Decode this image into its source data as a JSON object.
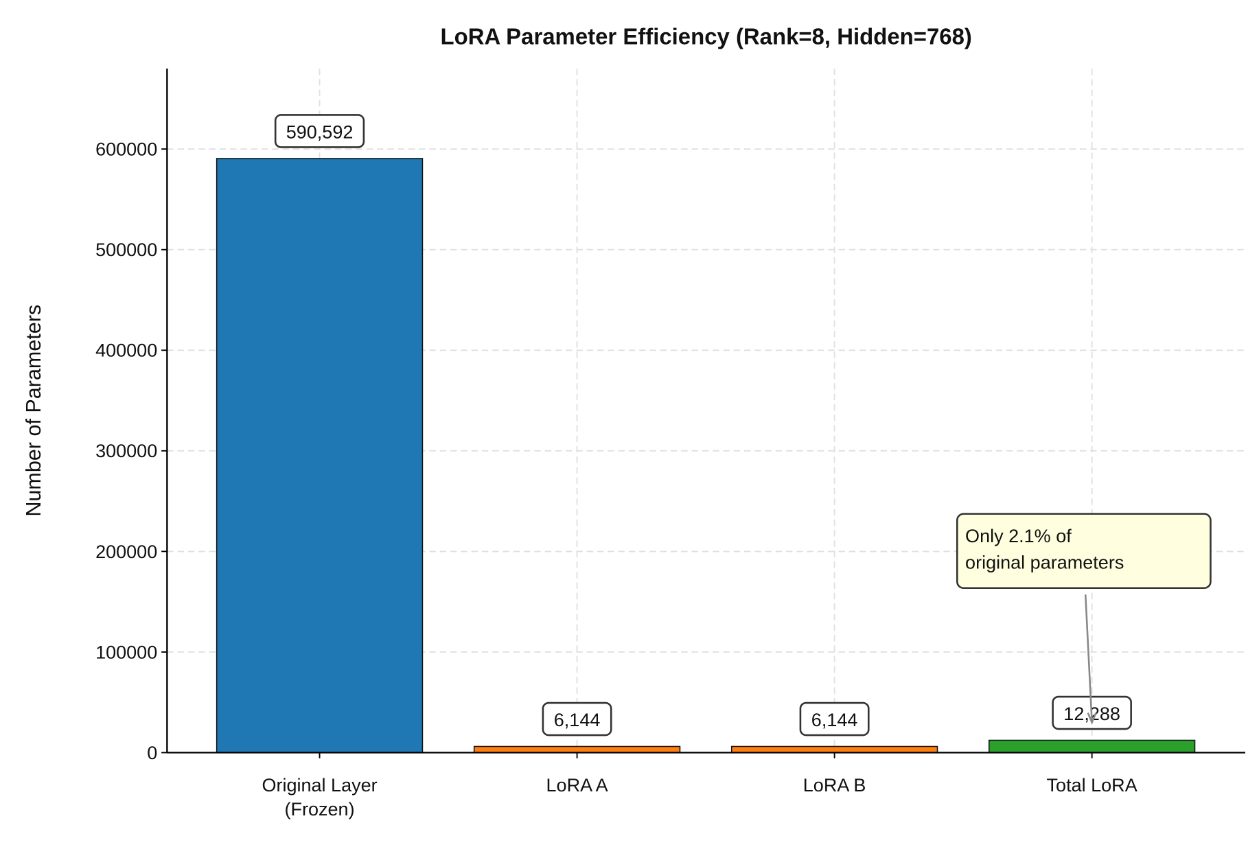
{
  "chart_data": {
    "type": "bar",
    "title": "LoRA Parameter Efficiency (Rank=8, Hidden=768)",
    "xlabel": "",
    "ylabel": "Number of Parameters",
    "categories": [
      "Original Layer\n(Frozen)",
      "LoRA A",
      "LoRA B",
      "Total LoRA"
    ],
    "values": [
      590592,
      6144,
      6144,
      12288
    ],
    "value_labels": [
      "590,592",
      "6,144",
      "6,144",
      "12,288"
    ],
    "colors": [
      "#1f77b4",
      "#ff7f0e",
      "#ff7f0e",
      "#2ca02c"
    ],
    "ylim": [
      0,
      680000
    ],
    "yticks": [
      0,
      100000,
      200000,
      300000,
      400000,
      500000,
      600000
    ],
    "ytick_labels": [
      "0",
      "100000",
      "200000",
      "300000",
      "400000",
      "500000",
      "600000"
    ],
    "grid": true,
    "annotation": {
      "text_lines": [
        "Only 2.1% of",
        "original parameters"
      ],
      "target_category": "Total LoRA",
      "target_value": 12288,
      "box_color": "#ffffe0"
    }
  }
}
